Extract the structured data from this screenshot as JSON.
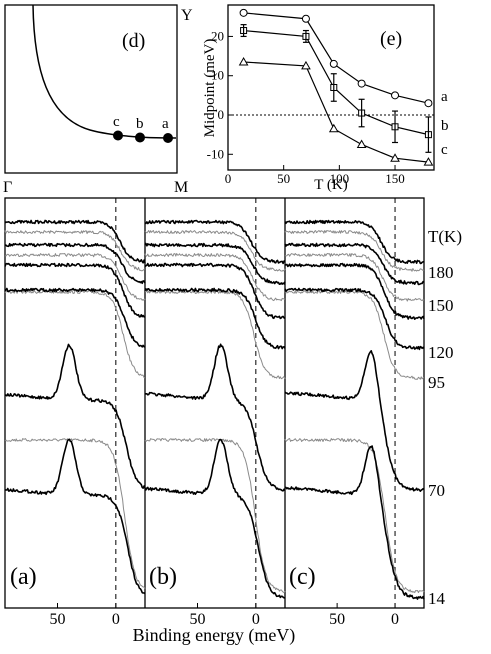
{
  "panel_d": {
    "label": "(d)",
    "points": [
      "c",
      "b",
      "a"
    ],
    "corner_labels": [
      "Γ",
      "M",
      "Y"
    ]
  },
  "chart_data": [
    {
      "type": "line",
      "panel": "(e)",
      "xlabel": "T (K)",
      "ylabel": "Midpoint (meV)",
      "xlim": [
        0,
        185
      ],
      "ylim": [
        -14,
        28
      ],
      "x_ticks": [
        0,
        50,
        100,
        150
      ],
      "y_ticks": [
        -10,
        0,
        10,
        20
      ],
      "zero_line": "dotted",
      "grid": false,
      "series": [
        {
          "name": "a",
          "marker": "circle",
          "x": [
            14,
            70,
            95,
            120,
            150,
            180
          ],
          "y": [
            26,
            24.5,
            13,
            8,
            5,
            3
          ]
        },
        {
          "name": "b",
          "marker": "square",
          "x": [
            14,
            70,
            95,
            120,
            150,
            180
          ],
          "y": [
            21.5,
            20,
            7,
            0.5,
            -3,
            -5
          ]
        },
        {
          "name": "c",
          "marker": "triangle",
          "x": [
            14,
            70,
            95,
            120,
            150,
            180
          ],
          "y": [
            13.5,
            12.5,
            -3.5,
            -7.5,
            -11,
            -12
          ]
        }
      ],
      "error_bars": {
        "series": "b",
        "x": [
          14,
          70,
          95,
          120,
          150,
          180
        ],
        "err": [
          1.5,
          1.5,
          3.5,
          3.5,
          4,
          4.5
        ]
      }
    },
    {
      "type": "line",
      "panels": [
        "(a)",
        "(b)",
        "(c)"
      ],
      "xlabel": "Binding energy (meV)",
      "x_reversed": true,
      "xlim": [
        -25,
        95
      ],
      "x_ticks": [
        50,
        0
      ],
      "fermi_level": 0,
      "temperature_label": "T(K)",
      "temperatures": [
        180,
        150,
        120,
        95,
        70,
        14
      ],
      "note": "spectra stacked with vertical offsets; grey dotted curves are reference spectra",
      "peak_energy": {
        "(a)": [
          40,
          40
        ],
        "(b)": [
          30,
          30
        ],
        "(c)": [
          20,
          20
        ]
      }
    }
  ]
}
